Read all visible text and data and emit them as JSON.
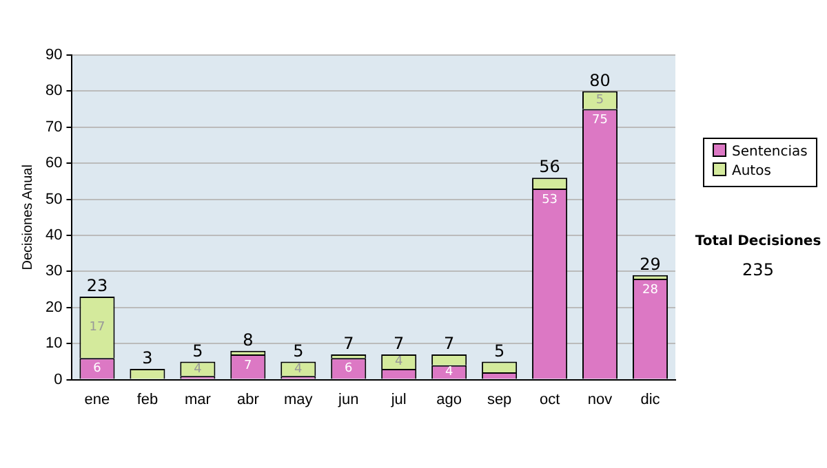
{
  "chart_data": {
    "type": "bar",
    "stacked": true,
    "ylabel": "Decisiones Anual",
    "categories": [
      "ene",
      "feb",
      "mar",
      "abr",
      "may",
      "jun",
      "jul",
      "ago",
      "sep",
      "oct",
      "nov",
      "dic"
    ],
    "series": [
      {
        "name": "Sentencias",
        "color": "#dc78c4",
        "values": [
          6,
          0,
          1,
          7,
          1,
          6,
          3,
          4,
          2,
          53,
          75,
          28
        ],
        "value_labels": [
          "6",
          null,
          null,
          "7",
          null,
          "6",
          null,
          "4",
          null,
          "53",
          "75",
          "28"
        ]
      },
      {
        "name": "Autos",
        "color": "#d4ea9c",
        "values": [
          17,
          3,
          4,
          1,
          4,
          1,
          4,
          3,
          3,
          3,
          5,
          1
        ],
        "value_labels": [
          "17",
          null,
          "4",
          null,
          "4",
          null,
          "4",
          null,
          null,
          null,
          "5",
          null
        ]
      }
    ],
    "totals": [
      "23",
      "3",
      "5",
      "8",
      "5",
      "7",
      "7",
      "7",
      "5",
      "56",
      "80",
      "29"
    ],
    "ylim": [
      0,
      90
    ],
    "yticks": [
      0,
      10,
      20,
      30,
      40,
      50,
      60,
      70,
      80,
      90
    ],
    "grid": "y",
    "legend": "right",
    "annotations": [
      "Total Decisiones",
      "235"
    ]
  }
}
